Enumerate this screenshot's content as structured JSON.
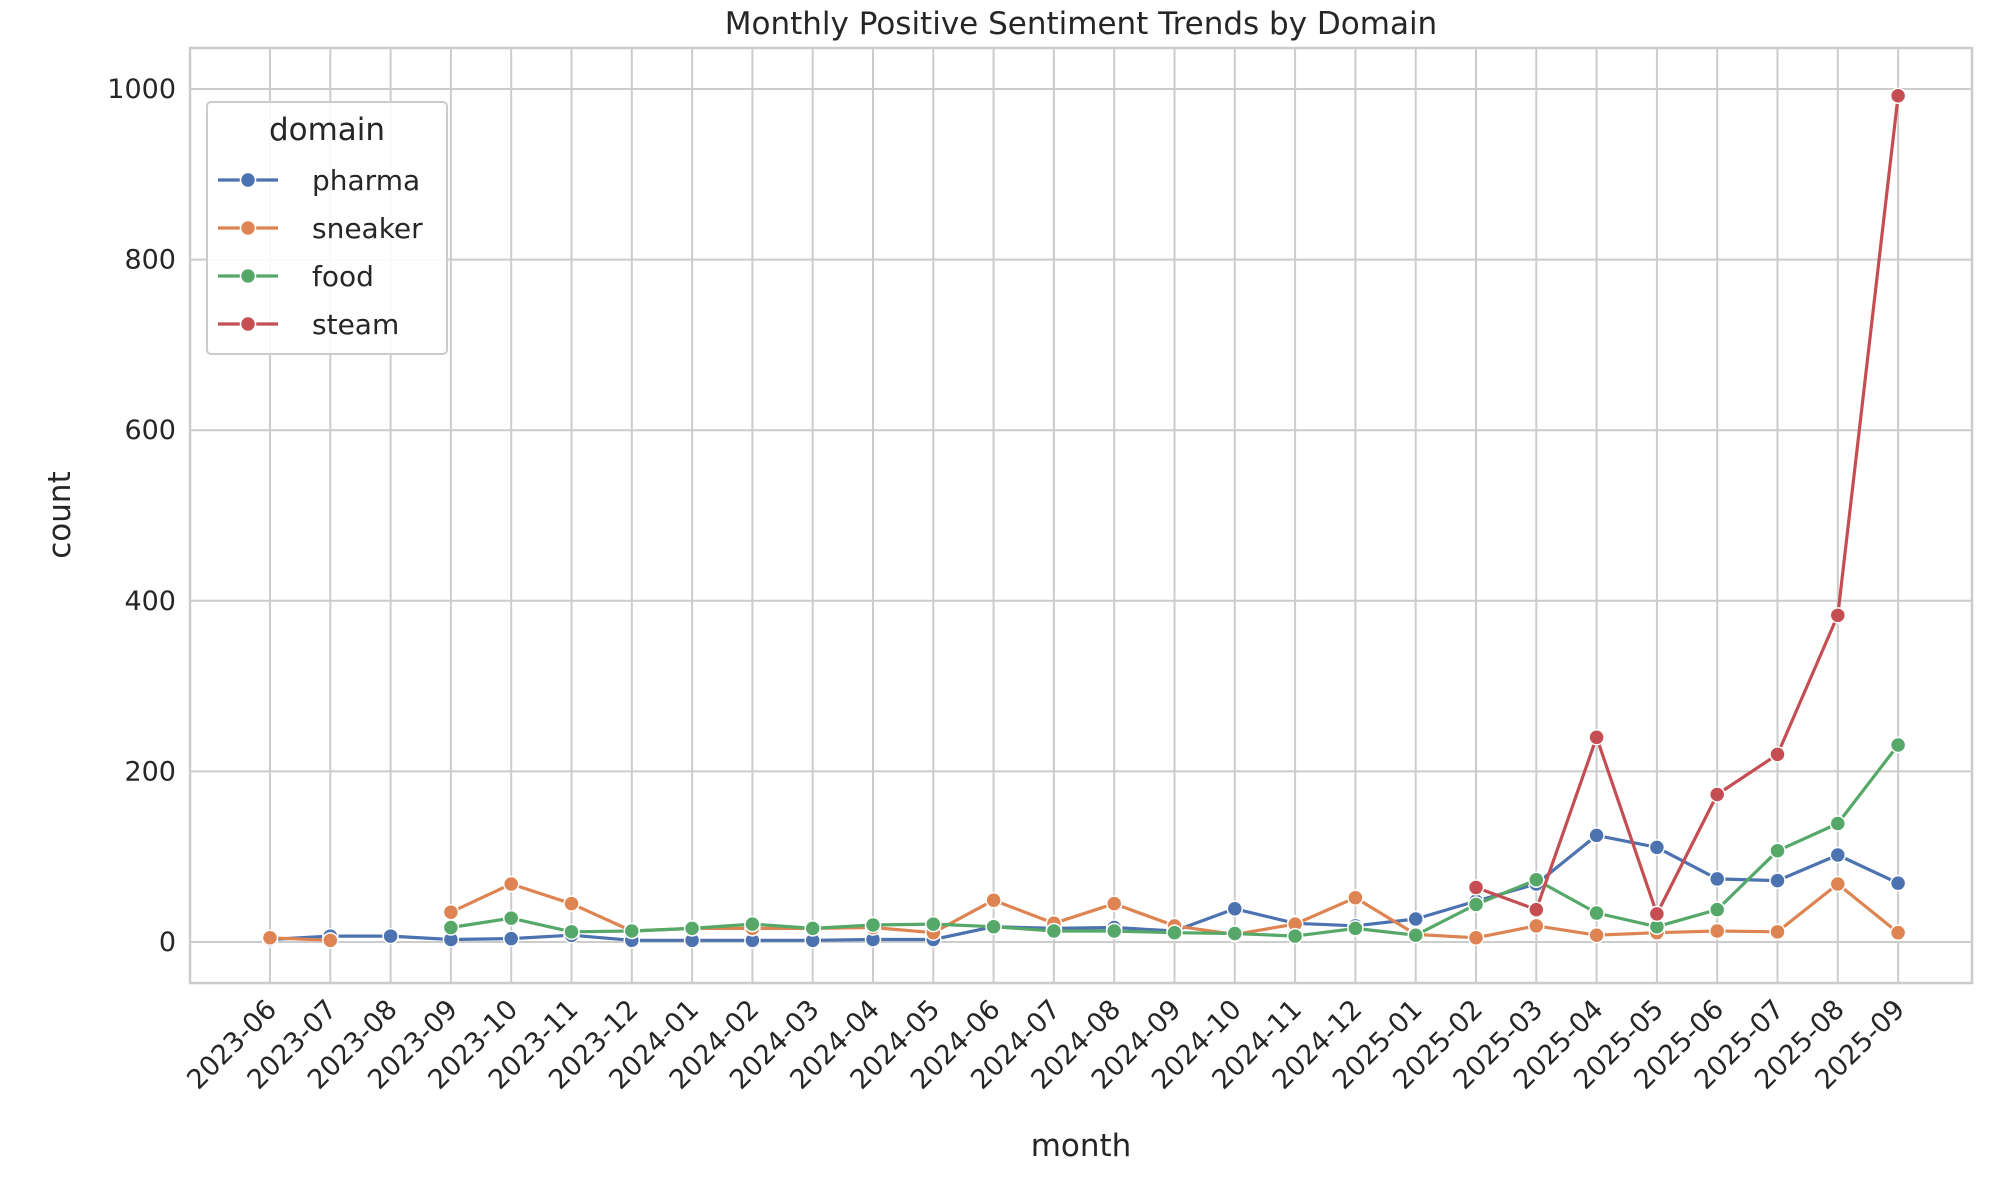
{
  "chart_data": {
    "type": "line",
    "title": "Monthly Positive Sentiment Trends by Domain",
    "xlabel": "month",
    "ylabel": "count",
    "x": [
      "2023-06",
      "2023-07",
      "2023-08",
      "2023-09",
      "2023-10",
      "2023-11",
      "2023-12",
      "2024-01",
      "2024-02",
      "2024-03",
      "2024-04",
      "2024-05",
      "2024-06",
      "2024-07",
      "2024-08",
      "2024-09",
      "2024-10",
      "2024-11",
      "2024-12",
      "2025-01",
      "2025-02",
      "2025-03",
      "2025-04",
      "2025-05",
      "2025-06",
      "2025-07",
      "2025-08",
      "2025-09"
    ],
    "ylim": [
      -48,
      1048
    ],
    "yticks": [
      0,
      200,
      400,
      600,
      800,
      1000
    ],
    "grid": true,
    "legend": {
      "title": "domain",
      "position": "upper-left"
    },
    "series": [
      {
        "name": "pharma",
        "color": "#4c72b0",
        "values": [
          3,
          7,
          7,
          3,
          4,
          8,
          2,
          2,
          2,
          2,
          3,
          3,
          18,
          16,
          17,
          13,
          39,
          22,
          19,
          27,
          48,
          68,
          125,
          111,
          74,
          72,
          102,
          69
        ]
      },
      {
        "name": "sneaker",
        "color": "#dd8452",
        "values": [
          5,
          2,
          null,
          35,
          68,
          45,
          13,
          16,
          16,
          16,
          17,
          11,
          49,
          22,
          45,
          19,
          9,
          21,
          52,
          9,
          5,
          19,
          8,
          11,
          13,
          12,
          68,
          11
        ]
      },
      {
        "name": "food",
        "color": "#55a868",
        "values": [
          null,
          null,
          null,
          17,
          28,
          12,
          13,
          16,
          21,
          16,
          20,
          21,
          18,
          13,
          13,
          11,
          10,
          7,
          16,
          8,
          44,
          73,
          34,
          18,
          38,
          107,
          139,
          231
        ]
      },
      {
        "name": "steam",
        "color": "#c44e52",
        "values": [
          null,
          null,
          null,
          null,
          null,
          null,
          null,
          null,
          null,
          null,
          null,
          null,
          null,
          null,
          null,
          null,
          null,
          null,
          null,
          null,
          64,
          38,
          240,
          33,
          173,
          220,
          383,
          992
        ]
      }
    ]
  }
}
